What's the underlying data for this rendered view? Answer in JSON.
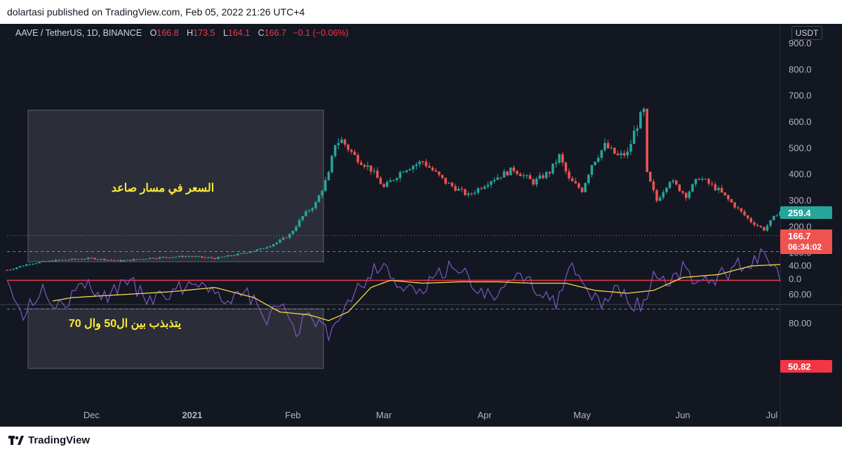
{
  "header": {
    "published": "dolartasi published on TradingView.com, Feb 05, 2022 21:26 UTC+4"
  },
  "symbol": {
    "title": "AAVE / TetherUS, 1D, BINANCE",
    "o_label": "O",
    "o": "166.8",
    "h_label": "H",
    "h": "173.5",
    "l_label": "L",
    "l": "164.1",
    "c_label": "C",
    "c": "166.7",
    "change": "−0.1 (−0.06%)"
  },
  "currency_badge": "USDT",
  "annotations": {
    "uptrend": "السعر في مسار صاعد",
    "rsi_range": "يتذبذب بين ال50 وال 70"
  },
  "price_badges": {
    "ma": "259.4",
    "last": "166.7",
    "countdown": "06:34:02",
    "rsi": "50.82"
  },
  "footer": {
    "logo_text": "TradingView",
    "logo_icon": "tradingview-logo-icon"
  },
  "colors": {
    "up": "#26a69a",
    "down": "#ef5350",
    "rsi": "#7e57c2",
    "rsi_ma": "#f7d54a",
    "rsi_level": "#f23645",
    "background": "#131722"
  },
  "chart_data": [
    {
      "type": "candlestick",
      "title": "AAVE / TetherUS, 1D, BINANCE",
      "x_ticks": [
        "Dec",
        "2021",
        "Feb",
        "Mar",
        "Apr",
        "May",
        "Jun",
        "Jul"
      ],
      "y_ticks": [
        "900.0",
        "800.0",
        "700.0",
        "600.0",
        "500.0",
        "400.0",
        "300.0",
        "200.0",
        "100.0",
        "0.0"
      ],
      "ylim": [
        0,
        950
      ],
      "last_price": 166.7,
      "price_path": [
        {
          "t": "2020-11-05",
          "v": 35
        },
        {
          "t": "2020-11-12",
          "v": 60
        },
        {
          "t": "2020-11-20",
          "v": 72
        },
        {
          "t": "2020-12-01",
          "v": 80
        },
        {
          "t": "2020-12-10",
          "v": 70
        },
        {
          "t": "2020-12-20",
          "v": 82
        },
        {
          "t": "2020-12-31",
          "v": 88
        },
        {
          "t": "2021-01-08",
          "v": 80
        },
        {
          "t": "2021-01-15",
          "v": 95
        },
        {
          "t": "2021-01-22",
          "v": 115
        },
        {
          "t": "2021-01-27",
          "v": 140
        },
        {
          "t": "2021-01-31",
          "v": 170
        },
        {
          "t": "2021-02-04",
          "v": 240
        },
        {
          "t": "2021-02-08",
          "v": 290
        },
        {
          "t": "2021-02-12",
          "v": 400
        },
        {
          "t": "2021-02-14",
          "v": 520
        },
        {
          "t": "2021-02-16",
          "v": 530
        },
        {
          "t": "2021-02-20",
          "v": 470
        },
        {
          "t": "2021-02-25",
          "v": 420
        },
        {
          "t": "2021-03-01",
          "v": 350
        },
        {
          "t": "2021-03-07",
          "v": 420
        },
        {
          "t": "2021-03-13",
          "v": 450
        },
        {
          "t": "2021-03-20",
          "v": 370
        },
        {
          "t": "2021-03-27",
          "v": 320
        },
        {
          "t": "2021-04-03",
          "v": 380
        },
        {
          "t": "2021-04-10",
          "v": 420
        },
        {
          "t": "2021-04-16",
          "v": 370
        },
        {
          "t": "2021-04-21",
          "v": 410
        },
        {
          "t": "2021-04-24",
          "v": 470
        },
        {
          "t": "2021-04-27",
          "v": 380
        },
        {
          "t": "2021-05-01",
          "v": 340
        },
        {
          "t": "2021-05-04",
          "v": 440
        },
        {
          "t": "2021-05-08",
          "v": 510
        },
        {
          "t": "2021-05-12",
          "v": 470
        },
        {
          "t": "2021-05-15",
          "v": 480
        },
        {
          "t": "2021-05-17",
          "v": 560
        },
        {
          "t": "2021-05-19",
          "v": 620
        },
        {
          "t": "2021-05-20",
          "v": 640
        },
        {
          "t": "2021-05-21",
          "v": 400
        },
        {
          "t": "2021-05-24",
          "v": 300
        },
        {
          "t": "2021-05-28",
          "v": 380
        },
        {
          "t": "2021-06-02",
          "v": 320
        },
        {
          "t": "2021-06-06",
          "v": 390
        },
        {
          "t": "2021-06-12",
          "v": 340
        },
        {
          "t": "2021-06-17",
          "v": 280
        },
        {
          "t": "2021-06-22",
          "v": 220
        },
        {
          "t": "2021-06-26",
          "v": 190
        },
        {
          "t": "2021-06-30",
          "v": 250
        },
        {
          "t": "2021-07-01",
          "v": 259
        }
      ]
    },
    {
      "type": "line",
      "title": "RSI",
      "y_ticks": [
        "80.00",
        "60.00",
        "40.00"
      ],
      "ylim": [
        25,
        95
      ],
      "bands": [
        30,
        70
      ],
      "level": 50,
      "series": [
        {
          "values": [
            {
              "t": "2020-11-05",
              "v": 45
            },
            {
              "t": "2020-11-10",
              "v": 75
            },
            {
              "t": "2020-11-16",
              "v": 55
            },
            {
              "t": "2020-11-22",
              "v": 70
            },
            {
              "t": "2020-11-28",
              "v": 52
            },
            {
              "t": "2020-12-05",
              "v": 62
            },
            {
              "t": "2020-12-12",
              "v": 50
            },
            {
              "t": "2020-12-20",
              "v": 65
            },
            {
              "t": "2020-12-28",
              "v": 55
            },
            {
              "t": "2021-01-05",
              "v": 50
            },
            {
              "t": "2021-01-12",
              "v": 68
            },
            {
              "t": "2021-01-18",
              "v": 58
            },
            {
              "t": "2021-01-24",
              "v": 80
            },
            {
              "t": "2021-01-28",
              "v": 65
            },
            {
              "t": "2021-02-02",
              "v": 85
            },
            {
              "t": "2021-02-06",
              "v": 75
            },
            {
              "t": "2021-02-12",
              "v": 88
            },
            {
              "t": "2021-02-16",
              "v": 70
            },
            {
              "t": "2021-02-21",
              "v": 55
            },
            {
              "t": "2021-02-25",
              "v": 45
            },
            {
              "t": "2021-03-01",
              "v": 38
            },
            {
              "t": "2021-03-06",
              "v": 55
            },
            {
              "t": "2021-03-12",
              "v": 60
            },
            {
              "t": "2021-03-18",
              "v": 45
            },
            {
              "t": "2021-03-24",
              "v": 40
            },
            {
              "t": "2021-03-30",
              "v": 58
            },
            {
              "t": "2021-04-06",
              "v": 60
            },
            {
              "t": "2021-04-12",
              "v": 45
            },
            {
              "t": "2021-04-17",
              "v": 55
            },
            {
              "t": "2021-04-23",
              "v": 65
            },
            {
              "t": "2021-04-28",
              "v": 42
            },
            {
              "t": "2021-05-02",
              "v": 55
            },
            {
              "t": "2021-05-07",
              "v": 67
            },
            {
              "t": "2021-05-12",
              "v": 55
            },
            {
              "t": "2021-05-17",
              "v": 68
            },
            {
              "t": "2021-05-20",
              "v": 65
            },
            {
              "t": "2021-05-23",
              "v": 45
            },
            {
              "t": "2021-05-27",
              "v": 52
            },
            {
              "t": "2021-06-01",
              "v": 42
            },
            {
              "t": "2021-06-07",
              "v": 53
            },
            {
              "t": "2021-06-14",
              "v": 45
            },
            {
              "t": "2021-06-20",
              "v": 38
            },
            {
              "t": "2021-06-26",
              "v": 33
            },
            {
              "t": "2021-07-01",
              "v": 50.82
            }
          ]
        },
        {
          "values": [
            {
              "t": "2020-11-05",
              "v": 48
            },
            {
              "t": "2020-11-15",
              "v": 66
            },
            {
              "t": "2020-11-25",
              "v": 62
            },
            {
              "t": "2020-12-10",
              "v": 60
            },
            {
              "t": "2020-12-25",
              "v": 58
            },
            {
              "t": "2021-01-08",
              "v": 55
            },
            {
              "t": "2021-01-20",
              "v": 62
            },
            {
              "t": "2021-01-28",
              "v": 72
            },
            {
              "t": "2021-02-06",
              "v": 74
            },
            {
              "t": "2021-02-12",
              "v": 78
            },
            {
              "t": "2021-02-18",
              "v": 72
            },
            {
              "t": "2021-02-25",
              "v": 55
            },
            {
              "t": "2021-03-03",
              "v": 50
            },
            {
              "t": "2021-03-13",
              "v": 52
            },
            {
              "t": "2021-03-25",
              "v": 51
            },
            {
              "t": "2021-04-05",
              "v": 51
            },
            {
              "t": "2021-04-15",
              "v": 52
            },
            {
              "t": "2021-04-26",
              "v": 52
            },
            {
              "t": "2021-05-05",
              "v": 57
            },
            {
              "t": "2021-05-15",
              "v": 59
            },
            {
              "t": "2021-05-23",
              "v": 57
            },
            {
              "t": "2021-06-01",
              "v": 48
            },
            {
              "t": "2021-06-12",
              "v": 46
            },
            {
              "t": "2021-06-22",
              "v": 40
            },
            {
              "t": "2021-07-01",
              "v": 39
            }
          ]
        }
      ]
    }
  ]
}
